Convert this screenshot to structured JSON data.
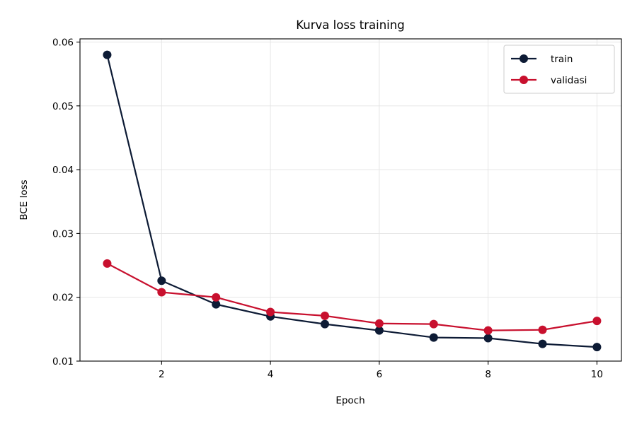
{
  "chart_data": {
    "type": "line",
    "title": "Kurva loss training",
    "xlabel": "Epoch",
    "ylabel": "BCE loss",
    "x": [
      1,
      2,
      3,
      4,
      5,
      6,
      7,
      8,
      9,
      10
    ],
    "xlim": [
      0.5,
      10.45
    ],
    "ylim": [
      0.01,
      0.0605
    ],
    "xticks": [
      2,
      4,
      6,
      8,
      10
    ],
    "xtick_labels": [
      "2",
      "4",
      "6",
      "8",
      "10"
    ],
    "yticks": [
      0.01,
      0.02,
      0.03,
      0.04,
      0.05,
      0.06
    ],
    "ytick_labels": [
      "0.01",
      "0.02",
      "0.03",
      "0.04",
      "0.05",
      "0.06"
    ],
    "grid": true,
    "legend_position": "top-right",
    "series": [
      {
        "name": "train",
        "color": "#0d1b35",
        "values": [
          0.058,
          0.0226,
          0.0189,
          0.017,
          0.0158,
          0.0148,
          0.0137,
          0.0136,
          0.0127,
          0.0122
        ]
      },
      {
        "name": "validasi",
        "color": "#c8102e",
        "values": [
          0.0253,
          0.0208,
          0.02,
          0.0177,
          0.0171,
          0.0159,
          0.0158,
          0.0148,
          0.0149,
          0.0163
        ]
      }
    ]
  }
}
